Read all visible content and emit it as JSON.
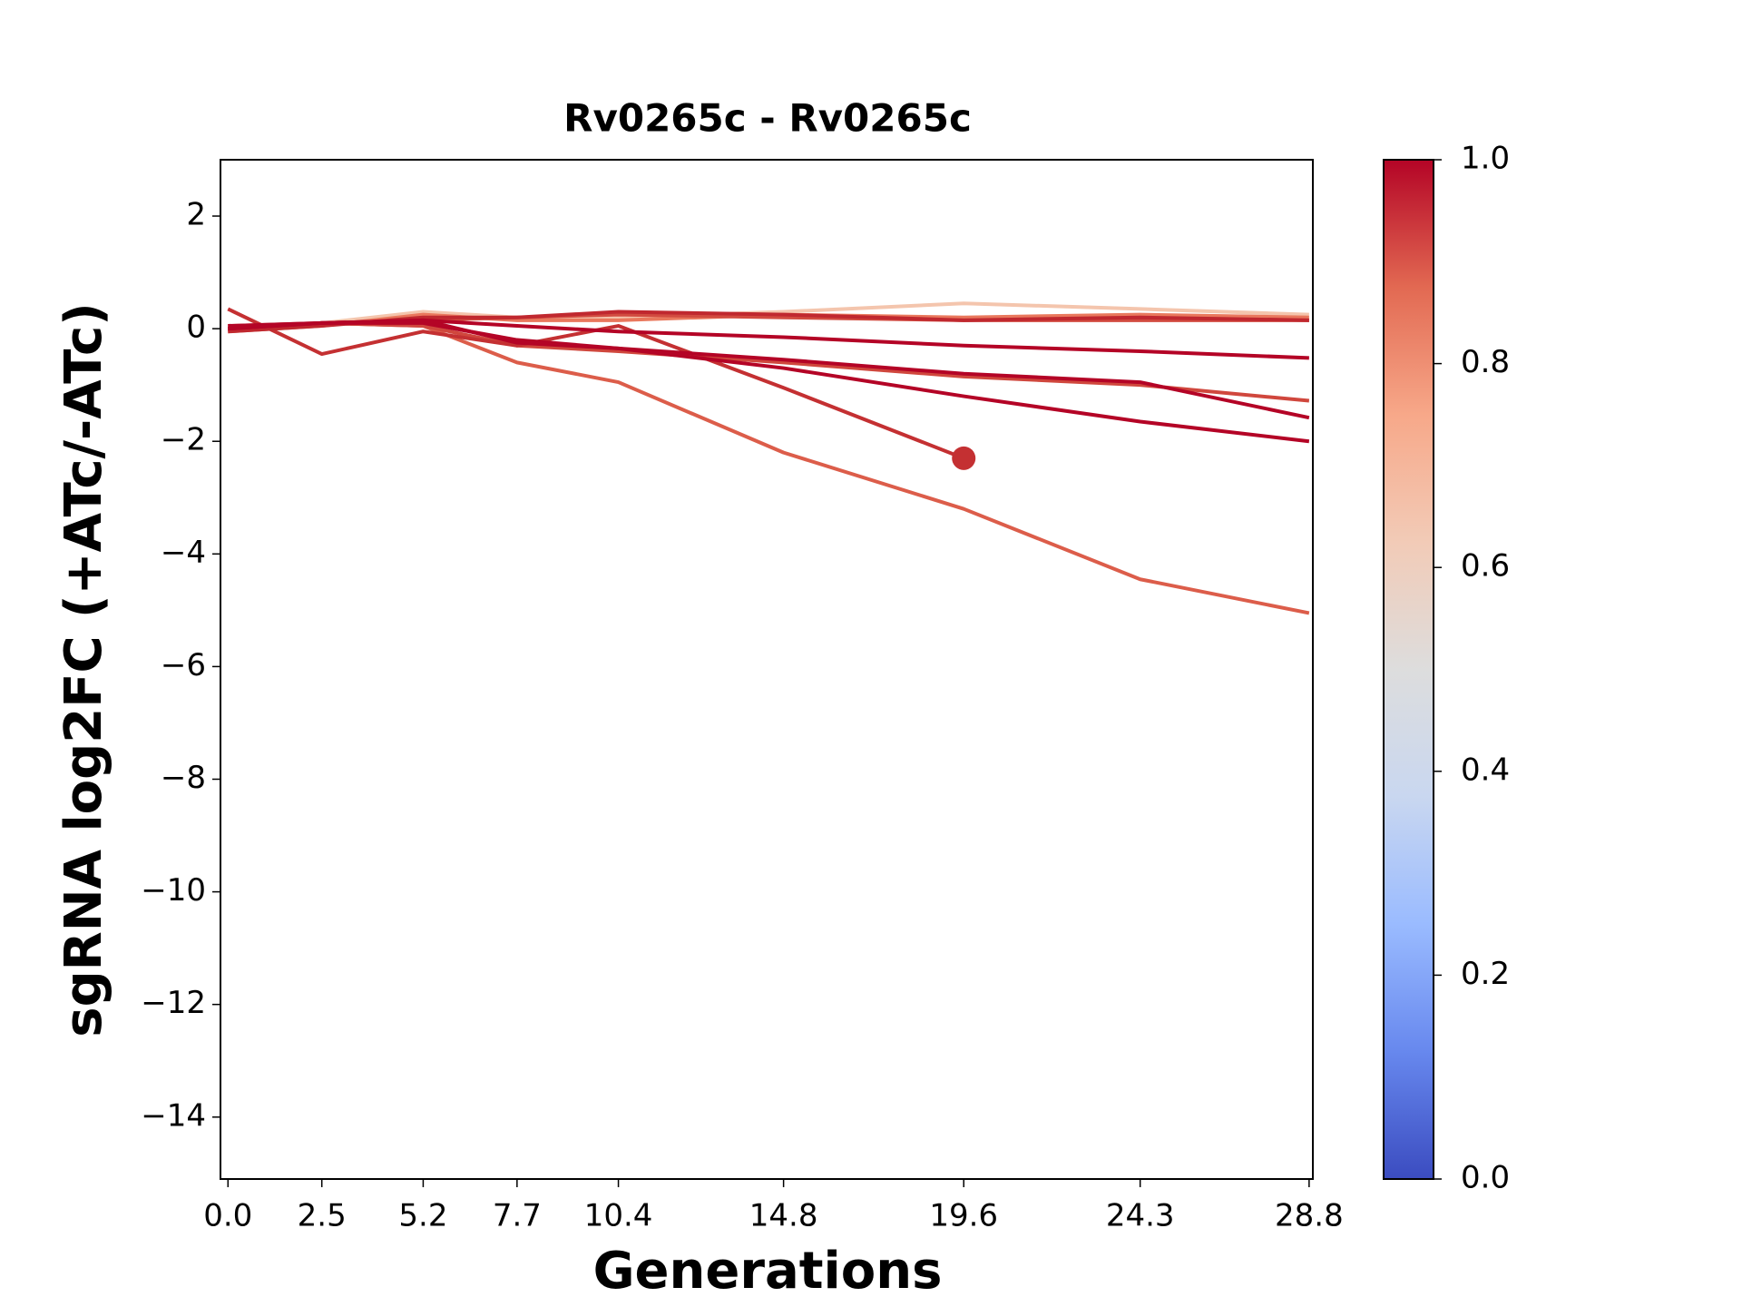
{
  "chart_data": {
    "type": "line",
    "title": "Rv0265c - Rv0265c",
    "xlabel": "Generations",
    "ylabel": "sgRNA log2FC (+ATc/-ATc)",
    "x": [
      0,
      2.5,
      5.2,
      7.7,
      10.4,
      14.8,
      19.6,
      24.3,
      28.8
    ],
    "xlim": [
      -0.2,
      28.9
    ],
    "xticks": [
      {
        "value": 0,
        "label": "0.0"
      },
      2.5,
      5.2,
      7.7,
      10.4,
      14.8,
      19.6,
      24.3,
      28.8
    ],
    "ylim": [
      -15.1,
      3
    ],
    "yticks": [
      {
        "value": -14,
        "label": "−14"
      },
      {
        "value": -12,
        "label": "−12"
      },
      {
        "value": -10,
        "label": "−10"
      },
      {
        "value": -8,
        "label": "−8"
      },
      {
        "value": -6,
        "label": "−6"
      },
      {
        "value": -4,
        "label": "−4"
      },
      {
        "value": -2,
        "label": "−2"
      },
      0,
      2
    ],
    "series": [
      {
        "color": "#f4c5ad",
        "values": [
          0,
          0.1,
          0.3,
          0.2,
          0.2,
          0.3,
          0.45,
          0.35,
          0.25
        ]
      },
      {
        "color": "#e9785d",
        "values": [
          -0.05,
          0.05,
          0.25,
          0.15,
          0.15,
          0.25,
          0.2,
          0.25,
          0.2
        ]
      },
      {
        "color": "#dc5d4a",
        "values": [
          0,
          0.1,
          0.05,
          -0.6,
          -0.95,
          -2.2,
          -3.2,
          -4.45,
          -5.05
        ]
      },
      {
        "color": "#d24b40",
        "values": [
          0,
          0.1,
          0.15,
          0.2,
          0.25,
          0.2,
          0.15,
          0.15,
          0.15
        ]
      },
      {
        "color": "#d0473d",
        "values": [
          0.05,
          0.1,
          0.05,
          -0.3,
          -0.4,
          -0.6,
          -0.85,
          -1.0,
          -1.28
        ]
      },
      {
        "color": "#c43032",
        "values": [
          0.35,
          -0.45,
          -0.05,
          -0.3,
          0.05,
          -1.05,
          -2.3,
          null,
          null
        ],
        "end_marker": true
      },
      {
        "color": "#c0282f",
        "values": [
          -0.05,
          0.05,
          0.2,
          0.2,
          0.3,
          0.25,
          0.15,
          0.2,
          0.15
        ]
      },
      {
        "color": "#b40426",
        "values": [
          0,
          0.1,
          0.15,
          0.05,
          -0.05,
          -0.15,
          -0.3,
          -0.4,
          -0.52
        ]
      },
      {
        "color": "#b40426",
        "values": [
          0.05,
          0.1,
          0.15,
          -0.25,
          -0.35,
          -0.55,
          -0.8,
          -0.95,
          -1.58
        ]
      },
      {
        "color": "#b40426",
        "values": [
          0,
          0.1,
          0.1,
          -0.2,
          -0.35,
          -0.7,
          -1.2,
          -1.65,
          -2.0
        ]
      }
    ],
    "colorbar": {
      "lim": [
        0,
        1
      ],
      "ticks": [
        {
          "value": 0,
          "label": "0.0"
        },
        0.2,
        0.4,
        0.6,
        0.8,
        {
          "value": 1,
          "label": "1.0"
        }
      ],
      "colors": [
        "#3b4cc0",
        "#6788ee",
        "#9abbff",
        "#c9d7f0",
        "#dddddd",
        "#f2cbb7",
        "#f7a889",
        "#e26952",
        "#b40426"
      ]
    }
  }
}
